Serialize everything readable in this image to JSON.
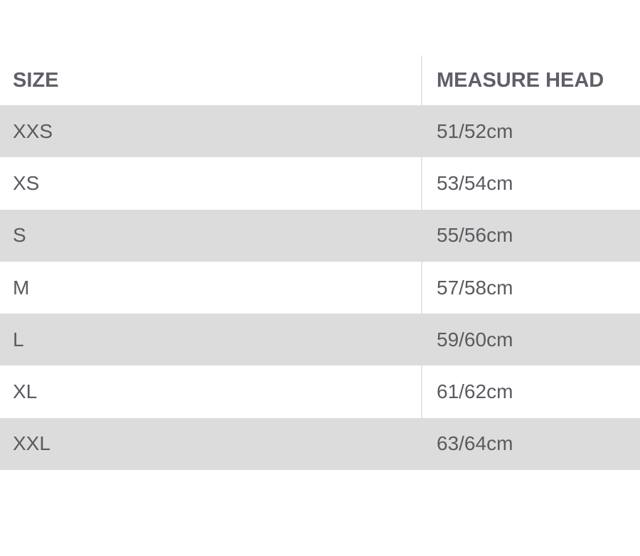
{
  "table": {
    "headers": [
      "SIZE",
      "MEASURE HEAD"
    ],
    "rows": [
      [
        "XXS",
        "51/52cm"
      ],
      [
        "XS",
        "53/54cm"
      ],
      [
        "S",
        "55/56cm"
      ],
      [
        "M",
        "57/58cm"
      ],
      [
        "L",
        "59/60cm"
      ],
      [
        "XL",
        "61/62cm"
      ],
      [
        "XXL",
        "63/64cm"
      ]
    ]
  },
  "colors": {
    "stripe": "#dcdcdc",
    "text": "#5a5a60"
  }
}
